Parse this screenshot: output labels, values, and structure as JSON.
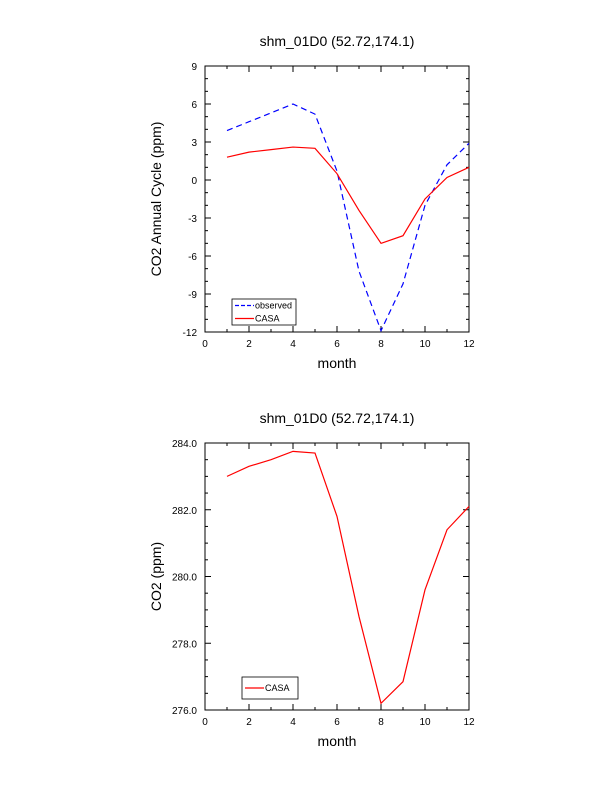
{
  "chart_data": [
    {
      "type": "line",
      "title": "shm_01D0 (52.72,174.1)",
      "xlabel": "month",
      "ylabel": "CO2 Annual Cycle (ppm)",
      "xlim": [
        0,
        12
      ],
      "ylim": [
        -12,
        9
      ],
      "xticks": [
        "0",
        "2",
        "4",
        "6",
        "8",
        "10",
        "12"
      ],
      "yticks": [
        "-12",
        "-9",
        "-6",
        "-3",
        "0",
        "3",
        "6",
        "9"
      ],
      "x": [
        1,
        2,
        3,
        4,
        5,
        6,
        7,
        8,
        9,
        10,
        11,
        12
      ],
      "series": [
        {
          "name": "observed",
          "color": "#0000ff",
          "dash": true,
          "values": [
            3.9,
            4.6,
            5.3,
            6.0,
            5.2,
            0.7,
            -7.2,
            -11.9,
            -8.2,
            -2.0,
            1.2,
            2.9
          ]
        },
        {
          "name": "CASA",
          "color": "#ff0000",
          "dash": false,
          "values": [
            1.8,
            2.2,
            2.4,
            2.6,
            2.5,
            0.5,
            -2.4,
            -5.0,
            -4.4,
            -1.5,
            0.2,
            1.0
          ]
        }
      ],
      "legend_position": "bottom-left"
    },
    {
      "type": "line",
      "title": "shm_01D0 (52.72,174.1)",
      "xlabel": "month",
      "ylabel": "CO2 (ppm)",
      "xlim": [
        0,
        12
      ],
      "ylim": [
        276.0,
        284.0
      ],
      "xticks": [
        "0",
        "2",
        "4",
        "6",
        "8",
        "10",
        "12"
      ],
      "yticks": [
        "276.0",
        "278.0",
        "280.0",
        "282.0",
        "284.0"
      ],
      "x": [
        1,
        2,
        3,
        4,
        5,
        6,
        7,
        8,
        9,
        10,
        11,
        12
      ],
      "series": [
        {
          "name": "CASA",
          "color": "#ff0000",
          "dash": false,
          "values": [
            283.0,
            283.3,
            283.5,
            283.75,
            283.7,
            281.8,
            278.8,
            276.2,
            276.85,
            279.6,
            281.4,
            282.1
          ]
        }
      ],
      "legend_position": "bottom-left"
    }
  ]
}
